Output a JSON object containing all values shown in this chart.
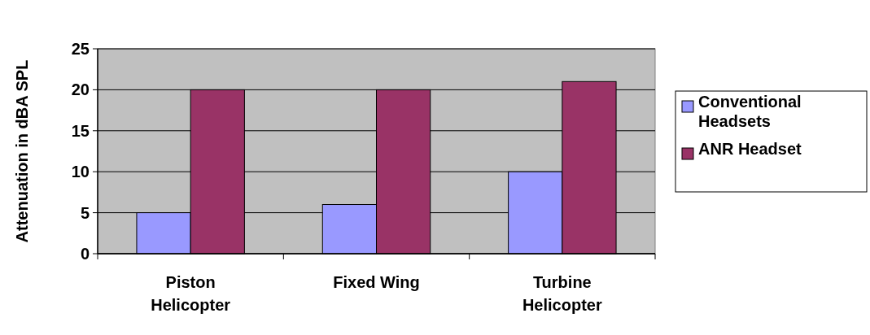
{
  "chart_data": {
    "type": "bar",
    "ylabel": "Attenuation in dBA SPL",
    "categories": [
      "Piston Helicopter",
      "Fixed Wing",
      "Turbine Helicopter"
    ],
    "series": [
      {
        "name": "Conventional Headsets",
        "color": "#9999ff",
        "values": [
          5,
          6,
          10
        ]
      },
      {
        "name": "ANR Headset",
        "color": "#993366",
        "values": [
          20,
          20,
          21
        ]
      }
    ],
    "ylim": [
      0,
      25
    ],
    "yticks": [
      0,
      5,
      10,
      15,
      20,
      25
    ],
    "grid": "y",
    "legend": "right"
  }
}
